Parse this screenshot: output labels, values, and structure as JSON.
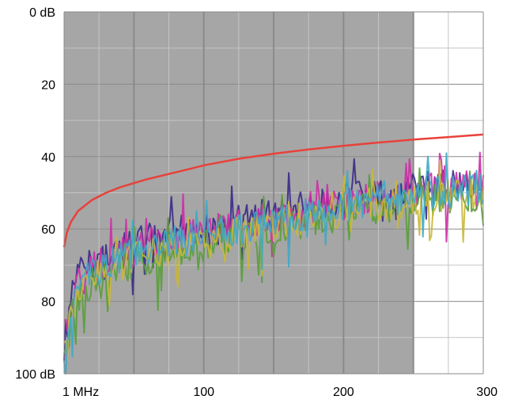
{
  "chart_data": {
    "type": "line",
    "title": "",
    "xlabel": "",
    "ylabel": "",
    "xlim": [
      0,
      300
    ],
    "ylim": [
      0,
      100
    ],
    "y_inverted": true,
    "grid": true,
    "x_ticks": [
      {
        "value": 0,
        "label": "1 MHz"
      },
      {
        "value": 100,
        "label": "100"
      },
      {
        "value": 200,
        "label": "200"
      },
      {
        "value": 300,
        "label": "300"
      }
    ],
    "y_ticks": [
      {
        "value": 0,
        "label": "0 dB"
      },
      {
        "value": 20,
        "label": "20"
      },
      {
        "value": 40,
        "label": "40"
      },
      {
        "value": 60,
        "label": "60"
      },
      {
        "value": 80,
        "label": "80"
      },
      {
        "value": 100,
        "label": "100 dB"
      }
    ],
    "shaded_region": {
      "x_from": 0,
      "x_to": 250,
      "color": "#a6a6a6"
    },
    "limit_line": {
      "color": "#e8413a",
      "x": [
        0,
        2,
        5,
        10,
        20,
        30,
        40,
        50,
        60,
        75,
        90,
        100,
        125,
        150,
        175,
        200,
        225,
        250,
        275,
        300
      ],
      "y": [
        65,
        61,
        58,
        55,
        52,
        50,
        48.5,
        47.3,
        46.2,
        44.8,
        43.4,
        42.4,
        40.6,
        39.2,
        38,
        37,
        36.1,
        35.3,
        34.6,
        33.9
      ]
    },
    "series": [
      {
        "color": "#3a2a8a",
        "x": [
          0,
          5,
          10,
          15,
          20,
          30,
          40,
          50,
          60,
          75,
          90,
          100,
          110,
          125,
          140,
          150,
          160,
          175,
          190,
          200,
          210,
          225,
          240,
          250,
          260,
          275,
          290,
          300
        ],
        "y": [
          92,
          78,
          72,
          70,
          68,
          66,
          65,
          63,
          62,
          61,
          58,
          60,
          59,
          57,
          55,
          56,
          54,
          53,
          52,
          51,
          50,
          50,
          49,
          48,
          47,
          47,
          46,
          46
        ]
      },
      {
        "color": "#cc2fa6",
        "x": [
          0,
          5,
          10,
          15,
          20,
          30,
          40,
          50,
          60,
          75,
          90,
          100,
          110,
          125,
          140,
          150,
          160,
          175,
          190,
          200,
          210,
          225,
          240,
          250,
          260,
          275,
          290,
          300
        ],
        "y": [
          88,
          80,
          74,
          71,
          70,
          68,
          66,
          65,
          63,
          62,
          60,
          61,
          59,
          58,
          57,
          56,
          55,
          54,
          52,
          52,
          51,
          50,
          50,
          49,
          48,
          48,
          47,
          47
        ]
      },
      {
        "color": "#5a9e3a",
        "x": [
          0,
          5,
          10,
          15,
          20,
          30,
          40,
          50,
          60,
          75,
          90,
          100,
          110,
          125,
          140,
          150,
          160,
          175,
          190,
          200,
          210,
          225,
          240,
          250,
          260,
          275,
          290,
          300
        ],
        "y": [
          95,
          84,
          78,
          76,
          74,
          72,
          70,
          69,
          68,
          66,
          65,
          64,
          62,
          61,
          60,
          59,
          58,
          57,
          56,
          55,
          54,
          54,
          53,
          52,
          51,
          51,
          50,
          50
        ]
      },
      {
        "color": "#c9b83a",
        "x": [
          0,
          5,
          10,
          15,
          20,
          30,
          40,
          50,
          60,
          75,
          90,
          100,
          110,
          125,
          140,
          150,
          160,
          175,
          190,
          200,
          210,
          225,
          240,
          250,
          260,
          275,
          290,
          300
        ],
        "y": [
          90,
          82,
          77,
          74,
          72,
          70,
          69,
          67,
          66,
          65,
          63,
          63,
          62,
          60,
          59,
          58,
          57,
          56,
          55,
          54,
          54,
          53,
          52,
          51,
          50,
          50,
          49,
          49
        ]
      },
      {
        "color": "#3fa9c8",
        "x": [
          0,
          5,
          10,
          15,
          20,
          30,
          40,
          50,
          60,
          75,
          90,
          100,
          110,
          125,
          140,
          150,
          160,
          175,
          190,
          200,
          210,
          225,
          240,
          250,
          260,
          275,
          290,
          300
        ],
        "y": [
          93,
          83,
          76,
          73,
          71,
          69,
          67,
          66,
          65,
          63,
          62,
          61,
          60,
          59,
          58,
          57,
          56,
          55,
          54,
          53,
          52,
          51,
          51,
          50,
          49,
          49,
          48,
          48
        ]
      }
    ]
  }
}
